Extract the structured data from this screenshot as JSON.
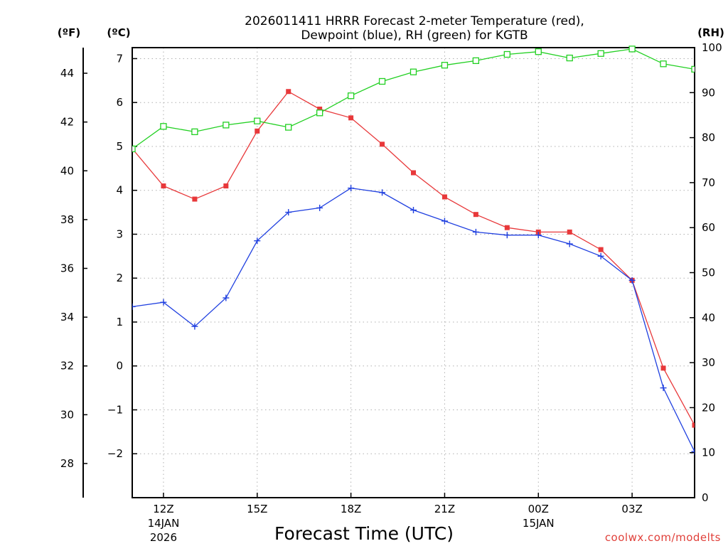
{
  "chart_data": {
    "type": "line",
    "title_line1": "2026011411 HRRR Forecast 2-meter Temperature (red),",
    "title_line2": "Dewpoint (blue), RH (green) for KGTB",
    "xlabel": "Forecast Time (UTC)",
    "units": {
      "fahrenheit": "(ºF)",
      "celsius": "(ºC)",
      "rh": "(RH)"
    },
    "credit": "coolwx.com/modelts",
    "x_hours": [
      11,
      12,
      13,
      14,
      15,
      16,
      17,
      18,
      19,
      20,
      21,
      22,
      23,
      24,
      25,
      26,
      27,
      28,
      29
    ],
    "x_ticks": [
      {
        "hour": 12,
        "label": "12Z",
        "date1": "14JAN",
        "date2": "2026"
      },
      {
        "hour": 15,
        "label": "15Z",
        "date1": "",
        "date2": ""
      },
      {
        "hour": 18,
        "label": "18Z",
        "date1": "",
        "date2": ""
      },
      {
        "hour": 21,
        "label": "21Z",
        "date1": "",
        "date2": ""
      },
      {
        "hour": 24,
        "label": "00Z",
        "date1": "15JAN",
        "date2": ""
      },
      {
        "hour": 27,
        "label": "03Z",
        "date1": "",
        "date2": ""
      }
    ],
    "celsius_axis": {
      "ylim": [
        -3,
        7.25
      ],
      "ticks": [
        "7",
        "6",
        "5",
        "4",
        "3",
        "2",
        "1",
        "0",
        "-1",
        "-2"
      ],
      "tick_values": [
        7,
        6,
        5,
        4,
        3,
        2,
        1,
        0,
        -1,
        -2
      ]
    },
    "fahrenheit_axis": {
      "ticks": [
        "44",
        "42",
        "40",
        "38",
        "36",
        "34",
        "32",
        "30",
        "28"
      ],
      "tick_values": [
        44,
        42,
        40,
        38,
        36,
        34,
        32,
        30,
        28
      ]
    },
    "rh_axis": {
      "ylim": [
        0,
        100
      ],
      "ticks": [
        "100",
        "90",
        "80",
        "70",
        "60",
        "50",
        "40",
        "30",
        "20",
        "10",
        "0"
      ],
      "tick_values": [
        100,
        90,
        80,
        70,
        60,
        50,
        40,
        30,
        20,
        10,
        0
      ]
    },
    "series": [
      {
        "name": "Temperature",
        "color": "#e8383a",
        "axis": "celsius",
        "marker": "filled-square",
        "values": [
          4.95,
          4.1,
          3.8,
          4.1,
          5.35,
          6.25,
          5.85,
          5.65,
          5.05,
          4.4,
          3.85,
          3.45,
          3.15,
          3.05,
          3.05,
          2.65,
          1.95,
          -0.05,
          -1.35
        ]
      },
      {
        "name": "Dewpoint",
        "color": "#2040e0",
        "axis": "celsius",
        "marker": "plus",
        "values": [
          1.35,
          1.45,
          0.9,
          1.55,
          2.85,
          3.5,
          3.6,
          4.05,
          3.95,
          3.55,
          3.3,
          3.05,
          2.98,
          2.98,
          2.78,
          2.5,
          1.95,
          -0.5,
          -1.95
        ]
      },
      {
        "name": "RH",
        "color": "#22d022",
        "axis": "rh",
        "marker": "open-square",
        "values": [
          77.5,
          82.5,
          81.3,
          82.8,
          83.7,
          82.3,
          85.5,
          89.3,
          92.5,
          94.6,
          96.1,
          97.1,
          98.5,
          99.1,
          97.7,
          98.7,
          99.7,
          96.4,
          95.2
        ]
      }
    ]
  }
}
